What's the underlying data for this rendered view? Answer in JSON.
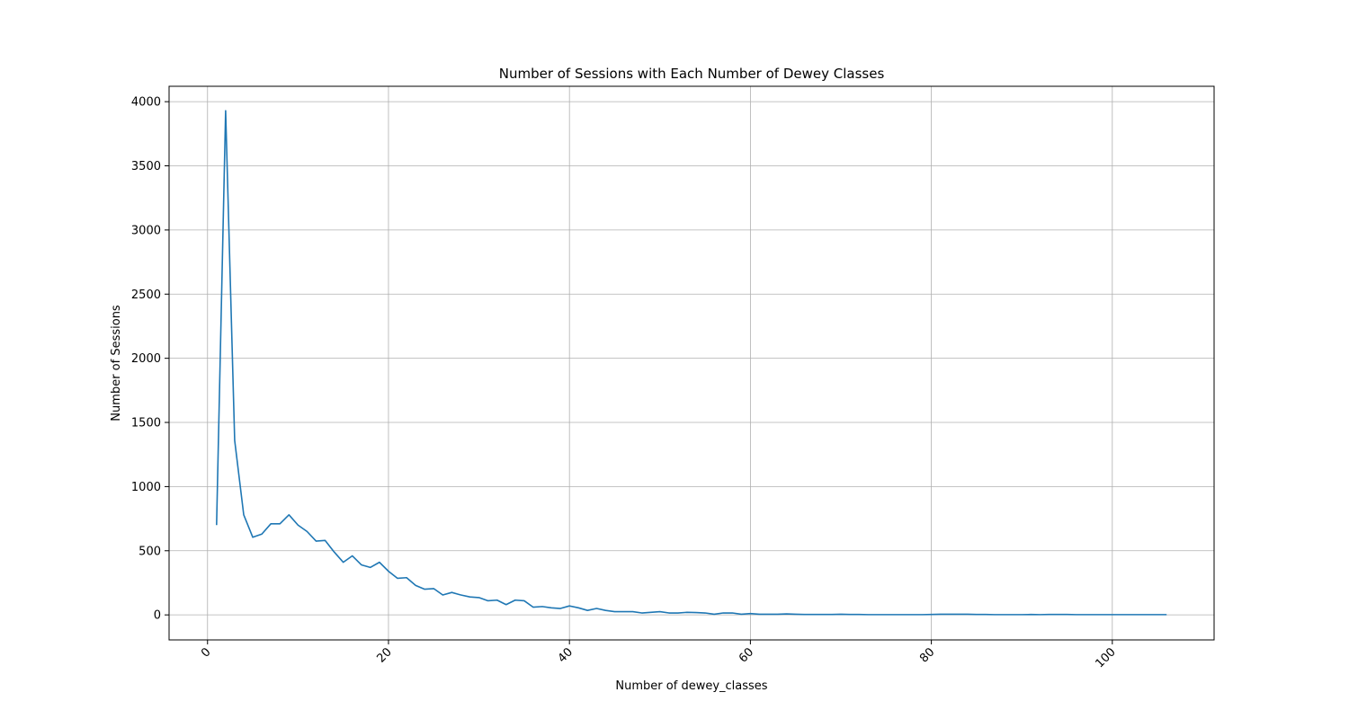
{
  "chart_data": {
    "type": "line",
    "title": "Number of Sessions with Each Number of Dewey Classes",
    "xlabel": "Number of dewey_classes",
    "ylabel": "Number of Sessions",
    "xlim": [
      -4.25,
      111.25
    ],
    "ylim": [
      -195,
      4120
    ],
    "xticks": [
      0,
      20,
      40,
      60,
      80,
      100
    ],
    "yticks": [
      0,
      500,
      1000,
      1500,
      2000,
      2500,
      3000,
      3500,
      4000
    ],
    "x_tick_rotation_deg": 45,
    "grid": true,
    "legend": "none",
    "series": [
      {
        "color": "#1f77b4",
        "x": [
          1,
          2,
          3,
          4,
          5,
          6,
          7,
          8,
          9,
          10,
          11,
          12,
          13,
          14,
          15,
          16,
          17,
          18,
          19,
          20,
          21,
          22,
          23,
          24,
          25,
          26,
          27,
          28,
          29,
          30,
          31,
          32,
          33,
          34,
          35,
          36,
          37,
          38,
          39,
          40,
          41,
          42,
          43,
          44,
          45,
          46,
          47,
          48,
          49,
          50,
          51,
          52,
          53,
          54,
          55,
          56,
          57,
          58,
          59,
          60,
          61,
          62,
          63,
          64,
          65,
          66,
          67,
          68,
          69,
          70,
          71,
          72,
          73,
          74,
          75,
          76,
          77,
          78,
          79,
          80,
          81,
          82,
          83,
          84,
          85,
          86,
          87,
          88,
          89,
          90,
          91,
          92,
          93,
          94,
          95,
          96,
          97,
          98,
          99,
          100,
          101,
          102,
          103,
          104,
          105,
          106
        ],
        "y": [
          700,
          3930,
          1360,
          780,
          605,
          630,
          710,
          710,
          780,
          700,
          650,
          575,
          580,
          490,
          410,
          460,
          390,
          370,
          410,
          340,
          285,
          290,
          230,
          200,
          205,
          155,
          175,
          155,
          140,
          135,
          110,
          115,
          80,
          115,
          110,
          60,
          65,
          55,
          50,
          70,
          55,
          35,
          50,
          35,
          25,
          25,
          25,
          15,
          20,
          25,
          15,
          15,
          20,
          18,
          15,
          5,
          15,
          15,
          5,
          10,
          5,
          5,
          5,
          8,
          5,
          3,
          3,
          3,
          3,
          5,
          3,
          3,
          2,
          2,
          2,
          2,
          2,
          2,
          2,
          3,
          5,
          5,
          5,
          5,
          3,
          3,
          2,
          2,
          2,
          2,
          3,
          2,
          3,
          3,
          3,
          2,
          2,
          2,
          2,
          2,
          2,
          2,
          2,
          2,
          2,
          2
        ]
      }
    ]
  }
}
